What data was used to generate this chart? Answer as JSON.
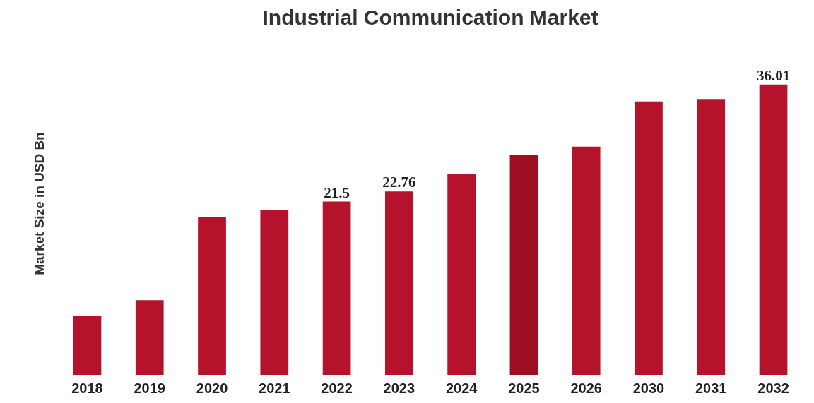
{
  "chart_data": {
    "type": "bar",
    "title": "Industrial Communication Market",
    "ylabel": "Market Size in USD Bn",
    "categories": [
      "2018",
      "2019",
      "2020",
      "2021",
      "2022",
      "2023",
      "2024",
      "2025",
      "2026",
      "2030",
      "2031",
      "2032"
    ],
    "values": [
      7.3,
      9.3,
      19.6,
      20.5,
      21.5,
      22.76,
      24.9,
      27.3,
      28.3,
      33.9,
      34.2,
      36.01
    ],
    "value_labels": [
      null,
      null,
      null,
      null,
      "21.5",
      "22.76",
      null,
      null,
      null,
      null,
      null,
      "36.01"
    ],
    "colors": [
      "#b5122b",
      "#b5122b",
      "#b5122b",
      "#b5122b",
      "#b5122b",
      "#b5122b",
      "#b5122b",
      "#9c0f22",
      "#b5122b",
      "#b5122b",
      "#b5122b",
      "#b5122b"
    ],
    "tick_labels": "x",
    "grid": false
  }
}
